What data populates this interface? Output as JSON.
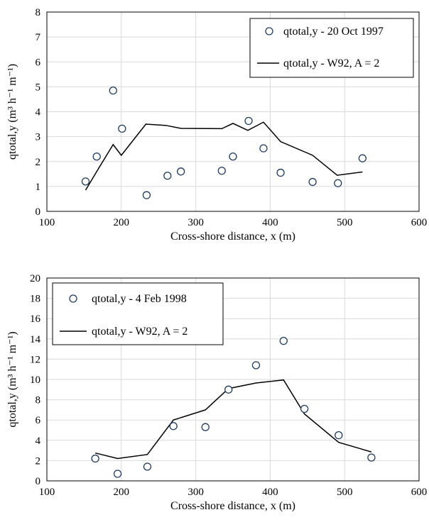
{
  "chart_data": [
    {
      "type": "scatter",
      "xlabel": "Cross-shore distance, x (m)",
      "ylabel": "qtotal,y (m³ h⁻¹ m⁻¹)",
      "xlim": [
        100,
        600
      ],
      "ylim": [
        0,
        8
      ],
      "xticks": [
        "100",
        "200",
        "300",
        "400",
        "500",
        "600"
      ],
      "yticks": [
        "0",
        "1",
        "2",
        "3",
        "4",
        "5",
        "6",
        "7",
        "8"
      ],
      "grid": true,
      "legend_position": "top-right",
      "series": [
        {
          "name": "qtotal,y - 20 Oct 1997",
          "mark": "circle",
          "x": [
            152,
            167,
            189,
            201,
            234,
            262,
            280,
            335,
            350,
            371,
            391,
            414,
            457,
            491,
            524
          ],
          "y": [
            1.2,
            2.2,
            4.85,
            3.32,
            0.65,
            1.43,
            1.6,
            1.63,
            2.2,
            3.63,
            2.53,
            1.55,
            1.18,
            1.13,
            2.13
          ]
        },
        {
          "name": "qtotal,y - W92, A = 2",
          "mark": "line",
          "x": [
            152,
            167,
            189,
            200,
            233,
            260,
            280,
            335,
            350,
            370,
            391,
            414,
            457,
            490,
            524
          ],
          "y": [
            0.85,
            1.6,
            2.68,
            2.25,
            3.5,
            3.45,
            3.33,
            3.32,
            3.53,
            3.25,
            3.58,
            2.8,
            2.25,
            1.45,
            1.58
          ]
        }
      ]
    },
    {
      "type": "scatter",
      "xlabel": "Cross-shore distance, x (m)",
      "ylabel": "qtotal,y (m³ h⁻¹ m⁻¹)",
      "xlim": [
        100,
        600
      ],
      "ylim": [
        0,
        20
      ],
      "xticks": [
        "100",
        "200",
        "300",
        "400",
        "500",
        "600"
      ],
      "yticks": [
        "0",
        "2",
        "4",
        "6",
        "8",
        "10",
        "12",
        "14",
        "16",
        "18",
        "20"
      ],
      "grid": true,
      "legend_position": "top-left",
      "series": [
        {
          "name": "qtotal,y - 4 Feb 1998",
          "mark": "circle",
          "x": [
            165,
            195,
            235,
            270,
            313,
            344,
            381,
            418,
            446,
            492,
            536
          ],
          "y": [
            2.2,
            0.7,
            1.4,
            5.4,
            5.3,
            9.0,
            11.4,
            13.8,
            7.1,
            4.5,
            2.3
          ]
        },
        {
          "name": "qtotal,y - W92, A = 2",
          "mark": "line",
          "x": [
            165,
            195,
            235,
            270,
            313,
            344,
            381,
            418,
            446,
            492,
            536
          ],
          "y": [
            2.75,
            2.2,
            2.6,
            6.0,
            7.0,
            9.1,
            9.65,
            9.95,
            6.6,
            3.8,
            2.85
          ]
        }
      ]
    }
  ]
}
